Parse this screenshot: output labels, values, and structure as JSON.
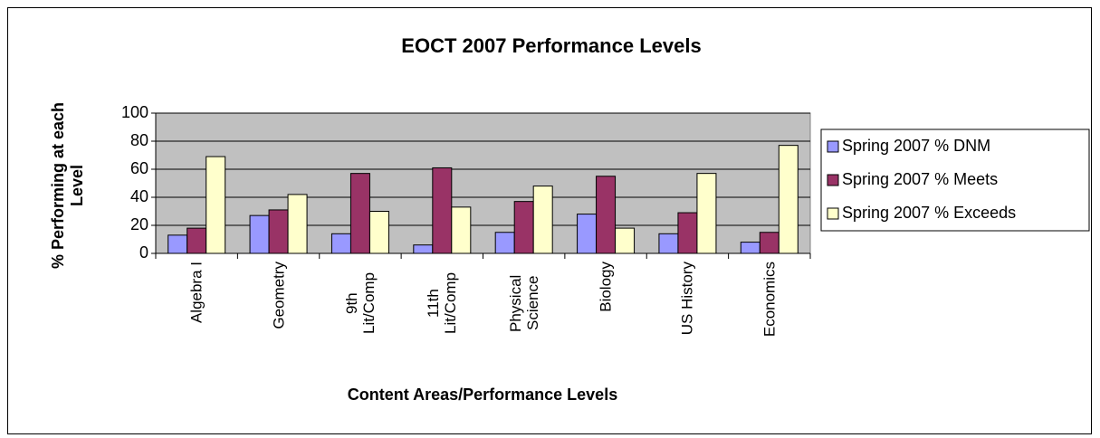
{
  "chart_data": {
    "type": "bar",
    "title": "EOCT 2007 Performance Levels",
    "x_label": "Content Areas/Performance Levels",
    "y_label": "% Performing at each Level",
    "categories": [
      "Algebra I",
      "Geometry",
      "9th Lit/Comp",
      "11th Lit/Comp",
      "Physical Science",
      "Biology",
      "US History",
      "Economics"
    ],
    "series": [
      {
        "name": "Spring 2007 % DNM",
        "color": "#9999ff",
        "values": [
          13,
          27,
          14,
          6,
          15,
          28,
          14,
          8
        ]
      },
      {
        "name": "Spring 2007 % Meets",
        "color": "#993366",
        "values": [
          18,
          31,
          57,
          61,
          37,
          55,
          29,
          15
        ]
      },
      {
        "name": "Spring 2007 % Exceeds",
        "color": "#ffffcc",
        "values": [
          69,
          42,
          30,
          33,
          48,
          18,
          57,
          77
        ]
      }
    ],
    "ylim": [
      0,
      100
    ],
    "yticks": [
      0,
      20,
      40,
      60,
      80,
      100
    ],
    "grid": true,
    "legend": "right",
    "plot_background": "#c0c0c0"
  }
}
